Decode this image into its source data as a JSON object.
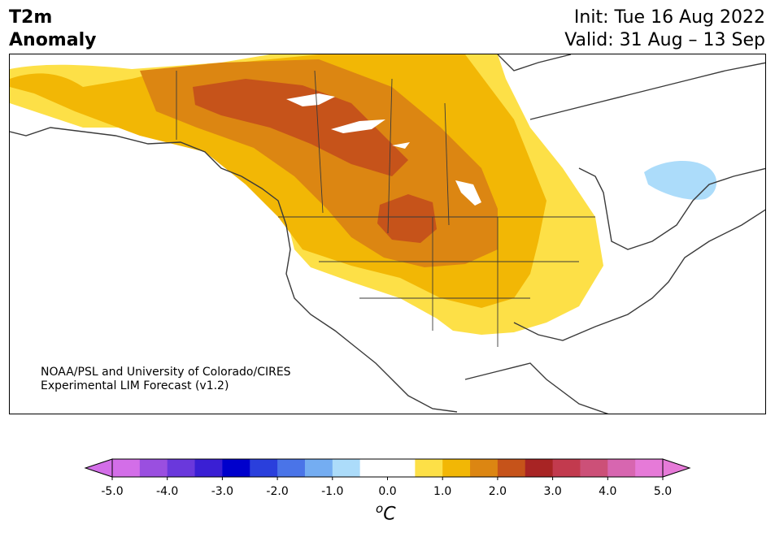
{
  "header": {
    "variable": "T2m",
    "kind": "Anomaly",
    "init": "Init: Tue 16 Aug 2022",
    "valid": "Valid: 31 Aug – 13 Sep"
  },
  "credit": {
    "line1": "NOAA/PSL and University of Colorado/CIRES",
    "line2": "Experimental LIM Forecast (v1.2)"
  },
  "colorbar": {
    "unit": "oC",
    "tick_labels": [
      "-5.0",
      "-4.0",
      "-3.0",
      "-2.0",
      "-1.0",
      "0.0",
      "1.0",
      "2.0",
      "3.0",
      "4.0",
      "5.0"
    ],
    "bins": [
      {
        "min": -5.0,
        "max": -4.5,
        "color": "#d36ee8"
      },
      {
        "min": -4.5,
        "max": -4.0,
        "color": "#9a4fe0"
      },
      {
        "min": -4.0,
        "max": -3.5,
        "color": "#6a38dc"
      },
      {
        "min": -3.5,
        "max": -3.0,
        "color": "#3a1fd4"
      },
      {
        "min": -3.0,
        "max": -2.5,
        "color": "#0000cc"
      },
      {
        "min": -2.5,
        "max": -2.0,
        "color": "#2a3fdc"
      },
      {
        "min": -2.0,
        "max": -1.5,
        "color": "#4a74e8"
      },
      {
        "min": -1.5,
        "max": -1.0,
        "color": "#74adf2"
      },
      {
        "min": -1.0,
        "max": -0.5,
        "color": "#acdcfa"
      },
      {
        "min": -0.5,
        "max": 0.0,
        "color": "#ffffff"
      },
      {
        "min": 0.0,
        "max": 0.5,
        "color": "#ffffff"
      },
      {
        "min": 0.5,
        "max": 1.0,
        "color": "#fde047"
      },
      {
        "min": 1.0,
        "max": 1.5,
        "color": "#f2b705"
      },
      {
        "min": 1.5,
        "max": 2.0,
        "color": "#dc8612"
      },
      {
        "min": 2.0,
        "max": 2.5,
        "color": "#c6531a"
      },
      {
        "min": 2.5,
        "max": 3.0,
        "color": "#a82424"
      },
      {
        "min": 3.0,
        "max": 3.5,
        "color": "#c23a4e"
      },
      {
        "min": 3.5,
        "max": 4.0,
        "color": "#cc5078"
      },
      {
        "min": 4.0,
        "max": 4.5,
        "color": "#d766b0"
      },
      {
        "min": 4.5,
        "max": 5.0,
        "color": "#e67ad8"
      }
    ],
    "extend": "both"
  },
  "map_layers": {
    "anomaly_0_5_to_1": "#fde047",
    "anomaly_1_to_1_5": "#f2b705",
    "anomaly_1_5_to_2": "#dc8612",
    "anomaly_2_to_2_5": "#c6531a",
    "anomaly_neg_0_5_to_neg_1": "#acdcfa"
  }
}
